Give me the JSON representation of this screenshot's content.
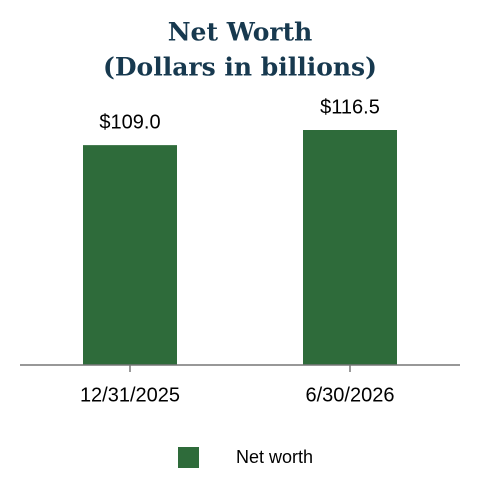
{
  "chart_data": {
    "type": "bar",
    "title": "Net Worth",
    "subtitle": "(Dollars in billions)",
    "categories": [
      "12/31/2025",
      "6/30/2026"
    ],
    "series": [
      {
        "name": "Net worth",
        "color": "#2e6b3a",
        "values": [
          109.0,
          116.5
        ],
        "value_labels": [
          "$109.0",
          "$116.5"
        ]
      }
    ],
    "legend": "bottom"
  }
}
